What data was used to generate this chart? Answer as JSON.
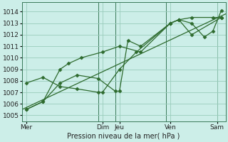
{
  "background_color": "#cceee8",
  "grid_color": "#99ccbb",
  "line_color": "#2d6a2d",
  "marker_color": "#2d6a2d",
  "xlabel": "Pression niveau de la mer( hPa )",
  "ylim": [
    1004.5,
    1014.8
  ],
  "yticks": [
    1005,
    1006,
    1007,
    1008,
    1009,
    1010,
    1011,
    1012,
    1013,
    1014
  ],
  "xlim": [
    0,
    24
  ],
  "day_labels": [
    "Mer",
    "Dim",
    "Jeu",
    "Ven",
    "Sam"
  ],
  "day_positions": [
    0.5,
    9.5,
    11.5,
    17.5,
    23.0
  ],
  "vline_positions": [
    0,
    9,
    11,
    17,
    23
  ],
  "trend_x": [
    0,
    24
  ],
  "trend_y": [
    1005.5,
    1013.8
  ],
  "series1_x": [
    0.5,
    2.5,
    4.5,
    6.5,
    9.0,
    9.5,
    11.5,
    13.5,
    17.5,
    18.5,
    20.0,
    22.5,
    23.5
  ],
  "series1_y": [
    1007.8,
    1008.3,
    1007.5,
    1007.3,
    1007.0,
    1007.0,
    1009.0,
    1010.5,
    1013.0,
    1013.3,
    1013.5,
    1013.5,
    1013.5
  ],
  "series2_x": [
    0.5,
    2.5,
    4.5,
    6.5,
    9.0,
    11.0,
    11.5,
    12.5,
    14.0,
    17.5,
    18.5,
    20.0,
    21.5,
    22.5,
    23.5
  ],
  "series2_y": [
    1005.5,
    1006.2,
    1007.8,
    1008.5,
    1008.2,
    1007.1,
    1007.1,
    1011.5,
    1011.0,
    1013.0,
    1013.3,
    1013.0,
    1011.8,
    1012.3,
    1014.1
  ],
  "series3_x": [
    0.5,
    2.5,
    4.5,
    5.5,
    7.0,
    9.5,
    11.5,
    14.0,
    17.5,
    18.5,
    20.0,
    23.5
  ],
  "series3_y": [
    1005.5,
    1006.2,
    1009.0,
    1009.5,
    1010.0,
    1010.5,
    1011.0,
    1010.5,
    1013.0,
    1013.3,
    1012.0,
    1013.5
  ]
}
